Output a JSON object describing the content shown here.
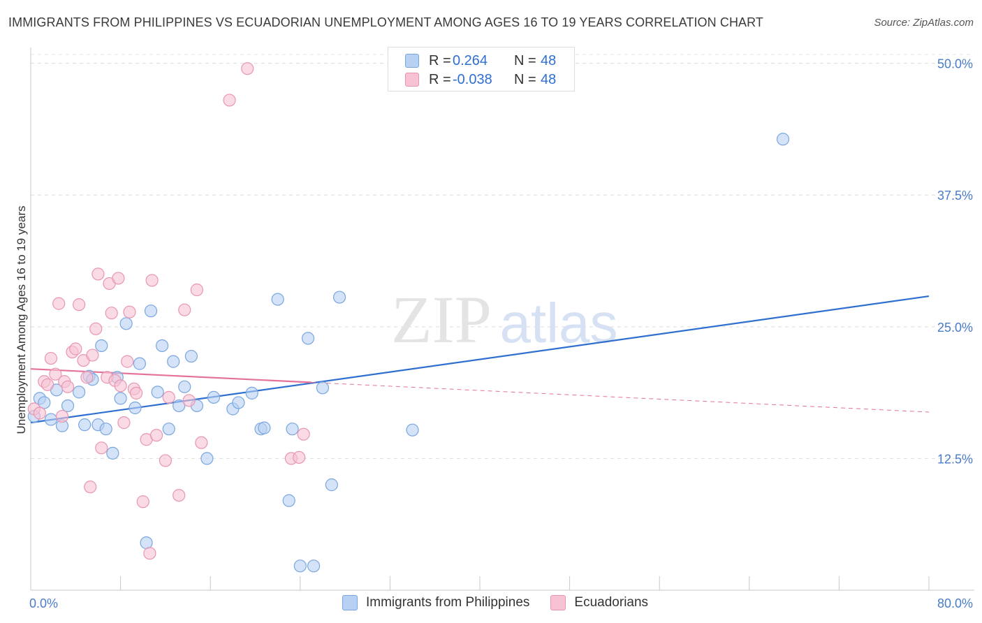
{
  "header": {
    "title": "IMMIGRANTS FROM PHILIPPINES VS ECUADORIAN UNEMPLOYMENT AMONG AGES 16 TO 19 YEARS CORRELATION CHART",
    "source": "Source: ZipAtlas.com"
  },
  "watermark": {
    "zip": "ZIP",
    "atlas": "atlas"
  },
  "legend": {
    "rows": [
      {
        "r_label": "R =",
        "r_value": "0.264",
        "n_label": "N =",
        "n_value": "48"
      },
      {
        "r_label": "R =",
        "r_value": "-0.038",
        "n_label": "N =",
        "n_value": "48"
      }
    ]
  },
  "bottom_legend": {
    "series1": "Immigrants from Philippines",
    "series2": "Ecuadorians"
  },
  "colors": {
    "blue_fill": "#b8d1f3",
    "blue_stroke": "#7aa6e0",
    "blue_line": "#2e6fd0",
    "pink_fill": "#f7c3d4",
    "pink_stroke": "#e895b2",
    "pink_line": "#e4729a",
    "tick_text": "#4a7cc7"
  },
  "chart_data": {
    "type": "scatter",
    "title": "IMMIGRANTS FROM PHILIPPINES VS ECUADORIAN UNEMPLOYMENT AMONG AGES 16 TO 19 YEARS CORRELATION CHART",
    "xlabel": "",
    "ylabel": "Unemployment Among Ages 16 to 19 years",
    "xlim": [
      0,
      80
    ],
    "ylim": [
      0,
      51.5
    ],
    "x_tick_labels": [
      "0.0%",
      "80.0%"
    ],
    "y_ticks": [
      12.5,
      25.0,
      37.5,
      50.0
    ],
    "y_tick_labels": [
      "12.5%",
      "25.0%",
      "37.5%",
      "50.0%"
    ],
    "grid": true,
    "series": [
      {
        "name": "Immigrants from Philippines",
        "points": [
          [
            0.3,
            16.5
          ],
          [
            0.8,
            18.2
          ],
          [
            1.2,
            17.8
          ],
          [
            1.8,
            16.2
          ],
          [
            2.3,
            19.0
          ],
          [
            2.8,
            15.6
          ],
          [
            3.3,
            17.5
          ],
          [
            4.3,
            18.8
          ],
          [
            4.8,
            15.7
          ],
          [
            5.2,
            20.3
          ],
          [
            5.5,
            20.0
          ],
          [
            6.0,
            15.7
          ],
          [
            6.3,
            23.2
          ],
          [
            6.7,
            15.3
          ],
          [
            7.3,
            13.0
          ],
          [
            7.7,
            20.2
          ],
          [
            8.0,
            18.2
          ],
          [
            8.5,
            25.3
          ],
          [
            9.3,
            17.3
          ],
          [
            9.7,
            21.5
          ],
          [
            10.3,
            4.5
          ],
          [
            10.7,
            26.5
          ],
          [
            11.3,
            18.8
          ],
          [
            11.7,
            23.2
          ],
          [
            12.3,
            15.3
          ],
          [
            12.7,
            21.7
          ],
          [
            13.2,
            17.5
          ],
          [
            13.7,
            19.3
          ],
          [
            14.3,
            22.2
          ],
          [
            14.8,
            17.5
          ],
          [
            15.7,
            12.5
          ],
          [
            16.3,
            18.3
          ],
          [
            18.0,
            17.2
          ],
          [
            18.5,
            17.8
          ],
          [
            19.7,
            18.7
          ],
          [
            20.5,
            15.3
          ],
          [
            20.8,
            15.4
          ],
          [
            22.0,
            27.6
          ],
          [
            23.0,
            8.5
          ],
          [
            23.3,
            15.3
          ],
          [
            24.0,
            2.3
          ],
          [
            24.7,
            23.9
          ],
          [
            25.2,
            2.3
          ],
          [
            26.0,
            19.2
          ],
          [
            26.8,
            10.0
          ],
          [
            27.5,
            27.8
          ],
          [
            34.0,
            15.2
          ],
          [
            67.0,
            42.8
          ]
        ]
      },
      {
        "name": "Ecuadorians",
        "points": [
          [
            0.3,
            17.2
          ],
          [
            0.8,
            16.8
          ],
          [
            1.2,
            19.8
          ],
          [
            1.5,
            19.5
          ],
          [
            1.8,
            22.0
          ],
          [
            2.2,
            20.5
          ],
          [
            2.5,
            27.2
          ],
          [
            2.8,
            16.5
          ],
          [
            3.0,
            19.8
          ],
          [
            3.3,
            19.3
          ],
          [
            3.7,
            22.6
          ],
          [
            4.0,
            22.9
          ],
          [
            4.3,
            27.1
          ],
          [
            4.7,
            21.8
          ],
          [
            5.0,
            20.2
          ],
          [
            5.3,
            9.8
          ],
          [
            5.5,
            22.3
          ],
          [
            5.8,
            24.8
          ],
          [
            6.0,
            30.0
          ],
          [
            6.3,
            13.5
          ],
          [
            6.8,
            20.2
          ],
          [
            7.0,
            29.1
          ],
          [
            7.2,
            26.3
          ],
          [
            7.5,
            19.9
          ],
          [
            7.8,
            29.6
          ],
          [
            8.0,
            19.4
          ],
          [
            8.3,
            15.9
          ],
          [
            8.6,
            21.7
          ],
          [
            8.8,
            26.4
          ],
          [
            9.2,
            19.1
          ],
          [
            9.4,
            18.7
          ],
          [
            10.0,
            8.4
          ],
          [
            10.3,
            14.3
          ],
          [
            10.6,
            3.5
          ],
          [
            10.8,
            29.4
          ],
          [
            11.2,
            14.7
          ],
          [
            12.0,
            12.3
          ],
          [
            12.3,
            18.3
          ],
          [
            13.2,
            9.0
          ],
          [
            13.7,
            26.6
          ],
          [
            14.1,
            18.0
          ],
          [
            14.8,
            28.5
          ],
          [
            15.2,
            14.0
          ],
          [
            17.7,
            46.5
          ],
          [
            19.3,
            49.5
          ],
          [
            23.2,
            12.5
          ],
          [
            23.9,
            12.6
          ],
          [
            24.3,
            14.8
          ]
        ]
      }
    ],
    "trend_lines": [
      {
        "series": "Immigrants from Philippines",
        "x": [
          0,
          80
        ],
        "y": [
          15.9,
          27.9
        ]
      },
      {
        "series": "Ecuadorians",
        "x": [
          0,
          80
        ],
        "y": [
          21.0,
          16.9
        ],
        "solid_until_x": 25
      }
    ]
  }
}
